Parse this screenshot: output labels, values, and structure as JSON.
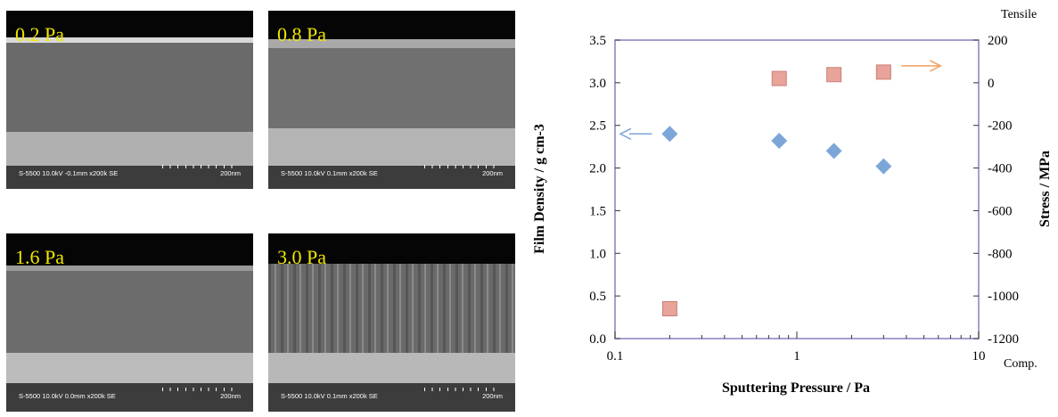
{
  "micrographs": [
    {
      "label": "0.2 Pa",
      "info": "S-5500 10.0kV -0.1mm x200k SE",
      "scale": "200nm"
    },
    {
      "label": "0.8 Pa",
      "info": "S-5500 10.0kV 0.1mm x200k SE",
      "scale": "200nm"
    },
    {
      "label": "1.6 Pa",
      "info": "S-5500 10.0kV 0.0mm x200k SE",
      "scale": "200nm"
    },
    {
      "label": "3.0 Pa",
      "info": "S-5500 10.0kV 0.1mm x200k SE",
      "scale": "200nm"
    }
  ],
  "chart_data": {
    "type": "scatter",
    "xlabel": "Sputtering Pressure / Pa",
    "ylabel_left": "Film Density / g cm-3",
    "ylabel_right": "Stress / MPa",
    "right_top_label": "Tensile",
    "right_bottom_label": "Comp.",
    "x_scale": "log",
    "xlim": [
      0.1,
      10
    ],
    "x_ticks": [
      {
        "v": 0.1,
        "label": "0.1"
      },
      {
        "v": 1,
        "label": "1"
      },
      {
        "v": 10,
        "label": "10"
      }
    ],
    "ylim_left": [
      0,
      3.5
    ],
    "y_ticks_left": [
      "0.0",
      "0.5",
      "1.0",
      "1.5",
      "2.0",
      "2.5",
      "3.0",
      "3.5"
    ],
    "ylim_right": [
      -1200,
      200
    ],
    "y_ticks_right": [
      "-1200",
      "-1000",
      "-800",
      "-600",
      "-400",
      "-200",
      "0",
      "200"
    ],
    "grid": false,
    "series": [
      {
        "marker": "diamond",
        "axis": "left",
        "color": "#7da6d8",
        "x": [
          0.2,
          0.8,
          1.6,
          3.0
        ],
        "y": [
          2.4,
          2.32,
          2.2,
          2.02
        ]
      },
      {
        "marker": "square",
        "axis": "right",
        "color": "#e8a39a",
        "x": [
          0.2,
          0.8,
          1.6,
          3.0
        ],
        "y": [
          -1060,
          20,
          38,
          50
        ]
      }
    ],
    "arrow_colors": {
      "density": "#7da6d8",
      "stress": "#f0a060"
    },
    "frame_color": "#8a7fbf"
  }
}
